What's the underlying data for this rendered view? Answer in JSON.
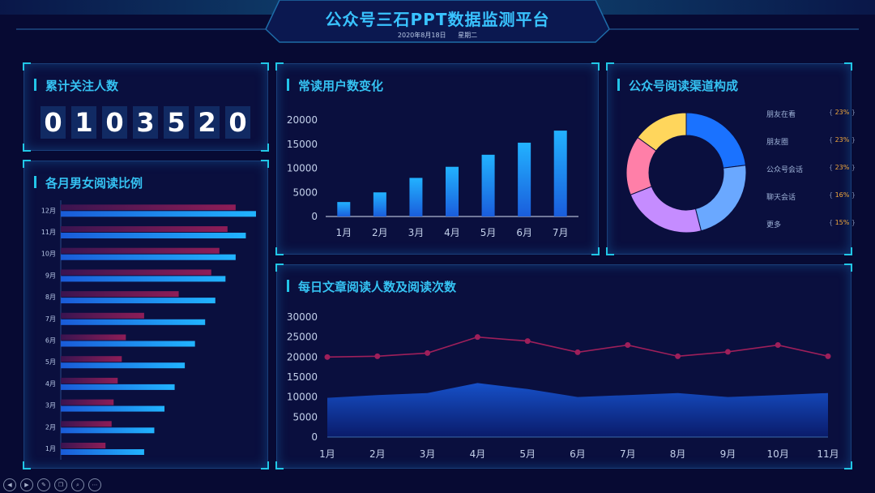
{
  "header": {
    "title": "公众号三石PPT数据监测平台",
    "date": "2020年8月18日",
    "weekday": "星期二"
  },
  "followers": {
    "title": "累计关注人数",
    "digits": [
      "0",
      "1",
      "0",
      "3",
      "5",
      "2",
      "0"
    ]
  },
  "gender_panel": {
    "title": "各月男女阅读比例"
  },
  "users_panel": {
    "title": "常读用户数变化"
  },
  "channels_panel": {
    "title": "公众号阅读渠道构成"
  },
  "daily_panel": {
    "title": "每日文章阅读人数及阅读次数"
  },
  "controls": [
    "◀",
    "▶",
    "✎",
    "❐",
    "⌕",
    "⋯"
  ],
  "chart_data": [
    {
      "type": "bar",
      "orientation": "horizontal",
      "categories": [
        "1月",
        "2月",
        "3月",
        "4月",
        "5月",
        "6月",
        "7月",
        "8月",
        "9月",
        "10月",
        "11月",
        "12月"
      ],
      "series": [
        {
          "color": "#8a1b52",
          "values": [
            22,
            25,
            26,
            28,
            30,
            32,
            41,
            58,
            74,
            78,
            82,
            86
          ]
        },
        {
          "color": "#1e9bf2",
          "values": [
            41,
            46,
            51,
            56,
            61,
            66,
            71,
            76,
            81,
            86,
            91,
            96
          ]
        }
      ],
      "xlim": [
        0,
        100
      ]
    },
    {
      "type": "bar",
      "categories": [
        "1月",
        "2月",
        "3月",
        "4月",
        "5月",
        "6月",
        "7月"
      ],
      "values": [
        3000,
        5000,
        8000,
        10300,
        12800,
        15300,
        17800
      ],
      "ylim": [
        0,
        20000
      ],
      "yticks": [
        0,
        5000,
        10000,
        15000,
        20000
      ]
    },
    {
      "type": "pie",
      "donut": true,
      "slices": [
        {
          "label": "朋友在看",
          "pct": "23%",
          "value": 23,
          "color": "#1a72ff"
        },
        {
          "label": "朋友圈",
          "pct": "23%",
          "value": 23,
          "color": "#6aa8ff"
        },
        {
          "label": "公众号会话",
          "pct": "23%",
          "value": 23,
          "color": "#c58cff"
        },
        {
          "label": "聊天会话",
          "pct": "16%",
          "value": 16,
          "color": "#ff7fa8"
        },
        {
          "label": "更多",
          "pct": "15%",
          "value": 15,
          "color": "#ffd65c"
        }
      ]
    },
    {
      "type": "line",
      "categories": [
        "1月",
        "2月",
        "3月",
        "4月",
        "5月",
        "6月",
        "7月",
        "8月",
        "9月",
        "10月",
        "11月"
      ],
      "series": [
        {
          "type": "line",
          "color": "#9e1f5a",
          "values": [
            20000,
            20200,
            21000,
            25000,
            24000,
            21200,
            23000,
            20200,
            21300,
            23000,
            20200
          ]
        },
        {
          "type": "area",
          "color": "#0f4cbf",
          "values": [
            9800,
            10500,
            11000,
            13500,
            12000,
            10000,
            10500,
            11000,
            10000,
            10500,
            11000
          ]
        }
      ],
      "ylim": [
        0,
        30000
      ],
      "yticks": [
        0,
        5000,
        10000,
        15000,
        20000,
        25000,
        30000
      ]
    }
  ]
}
